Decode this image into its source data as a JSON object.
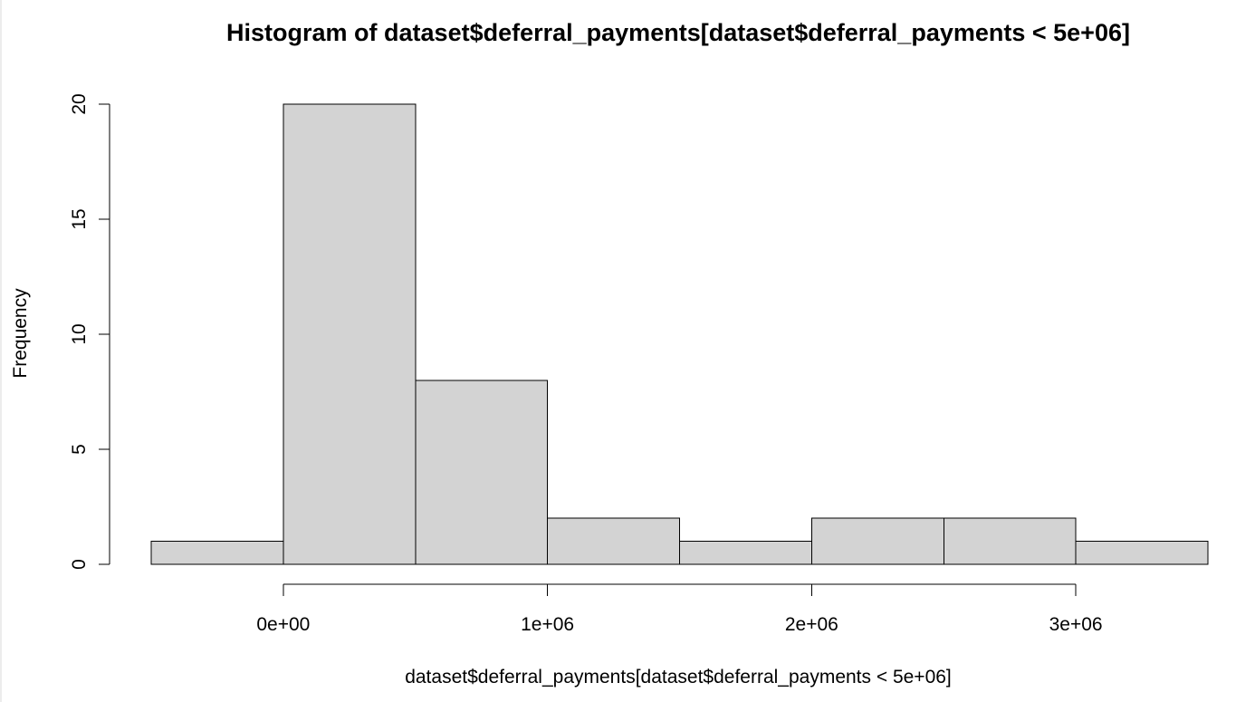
{
  "chart_data": {
    "type": "bar",
    "title": "Histogram of dataset$deferral_payments[dataset$deferral_payments < 5e+06]",
    "xlabel": "dataset$deferral_payments[dataset$deferral_payments < 5e+06]",
    "ylabel": "Frequency",
    "bins": [
      {
        "start": -500000,
        "end": 0,
        "count": 1
      },
      {
        "start": 0,
        "end": 500000,
        "count": 20
      },
      {
        "start": 500000,
        "end": 1000000,
        "count": 8
      },
      {
        "start": 1000000,
        "end": 1500000,
        "count": 2
      },
      {
        "start": 1500000,
        "end": 2000000,
        "count": 1
      },
      {
        "start": 2000000,
        "end": 2500000,
        "count": 2
      },
      {
        "start": 2500000,
        "end": 3000000,
        "count": 2
      },
      {
        "start": 3000000,
        "end": 3500000,
        "count": 1
      }
    ],
    "x_ticks": [
      {
        "value": 0,
        "label": "0e+00"
      },
      {
        "value": 1000000,
        "label": "1e+06"
      },
      {
        "value": 2000000,
        "label": "2e+06"
      },
      {
        "value": 3000000,
        "label": "3e+06"
      }
    ],
    "y_ticks": [
      {
        "value": 0,
        "label": "0"
      },
      {
        "value": 5,
        "label": "5"
      },
      {
        "value": 10,
        "label": "10"
      },
      {
        "value": 15,
        "label": "15"
      },
      {
        "value": 20,
        "label": "20"
      }
    ],
    "xlim": [
      -500000,
      3500000
    ],
    "ylim": [
      0,
      20
    ],
    "grid": false,
    "colors": {
      "bar_fill": "#d3d3d3",
      "bar_stroke": "#000000",
      "axis": "#000000"
    }
  }
}
